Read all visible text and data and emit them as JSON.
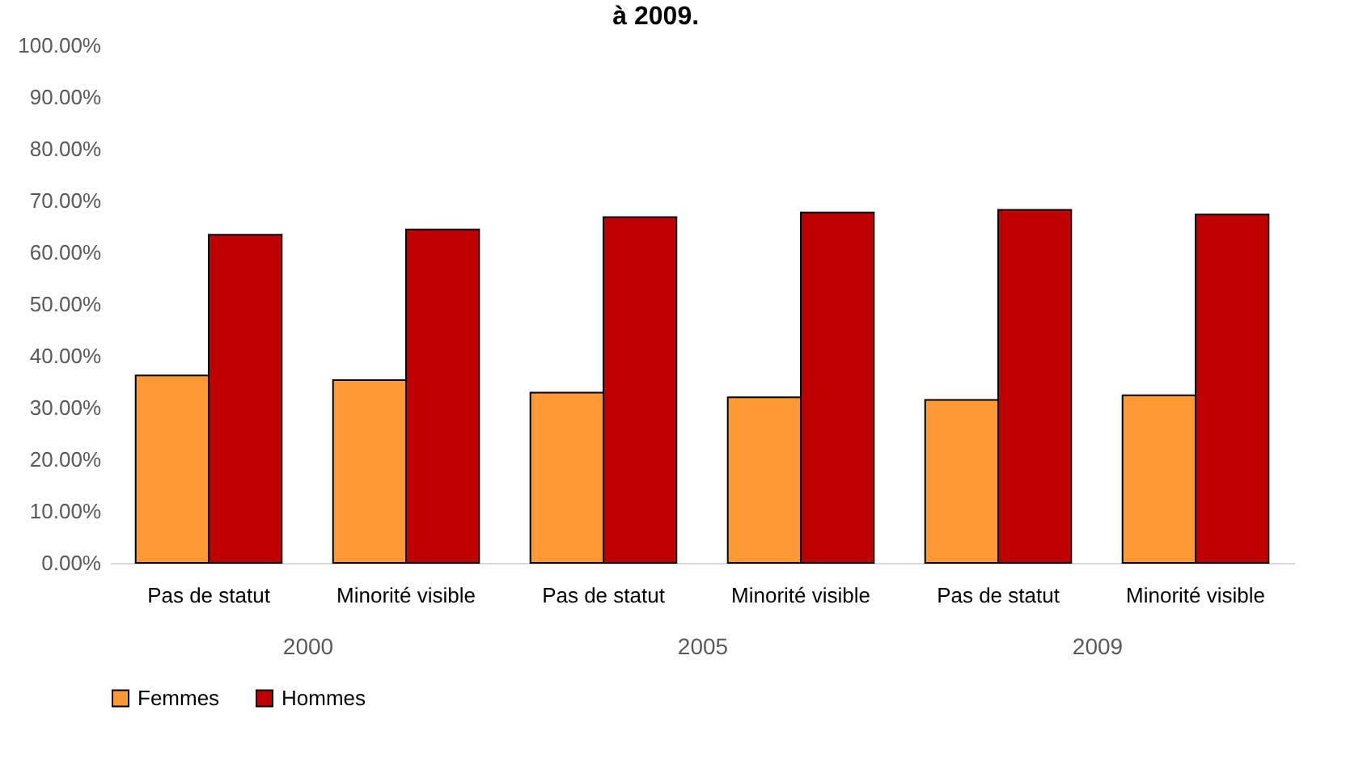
{
  "chart_data": {
    "type": "bar",
    "title": "à 2009.",
    "categories": [
      "Pas de statut",
      "Minorité visible",
      "Pas de statut",
      "Minorité visible",
      "Pas de statut",
      "Minorité visible"
    ],
    "annotations": [
      "2000",
      "2005",
      "2009"
    ],
    "series": [
      {
        "name": "Femmes",
        "color": "#ff9933",
        "values": [
          36.2,
          35.3,
          32.9,
          32.0,
          31.5,
          32.4
        ]
      },
      {
        "name": "Hommes",
        "color": "#c00000",
        "values": [
          63.4,
          64.4,
          66.8,
          67.7,
          68.2,
          67.3
        ]
      }
    ],
    "ylim": [
      0,
      100
    ],
    "yticks": [
      {
        "value": 0,
        "label": "0.00%"
      },
      {
        "value": 10,
        "label": "10.00%"
      },
      {
        "value": 20,
        "label": "20.00%"
      },
      {
        "value": 30,
        "label": "30.00%"
      },
      {
        "value": 40,
        "label": "40.00%"
      },
      {
        "value": 50,
        "label": "50.00%"
      },
      {
        "value": 60,
        "label": "60.00%"
      },
      {
        "value": 70,
        "label": "70.00%"
      },
      {
        "value": 80,
        "label": "80.00%"
      },
      {
        "value": 90,
        "label": "90.00%"
      },
      {
        "value": 100,
        "label": "100.00%"
      }
    ],
    "grid": false,
    "legend": "bottom"
  }
}
